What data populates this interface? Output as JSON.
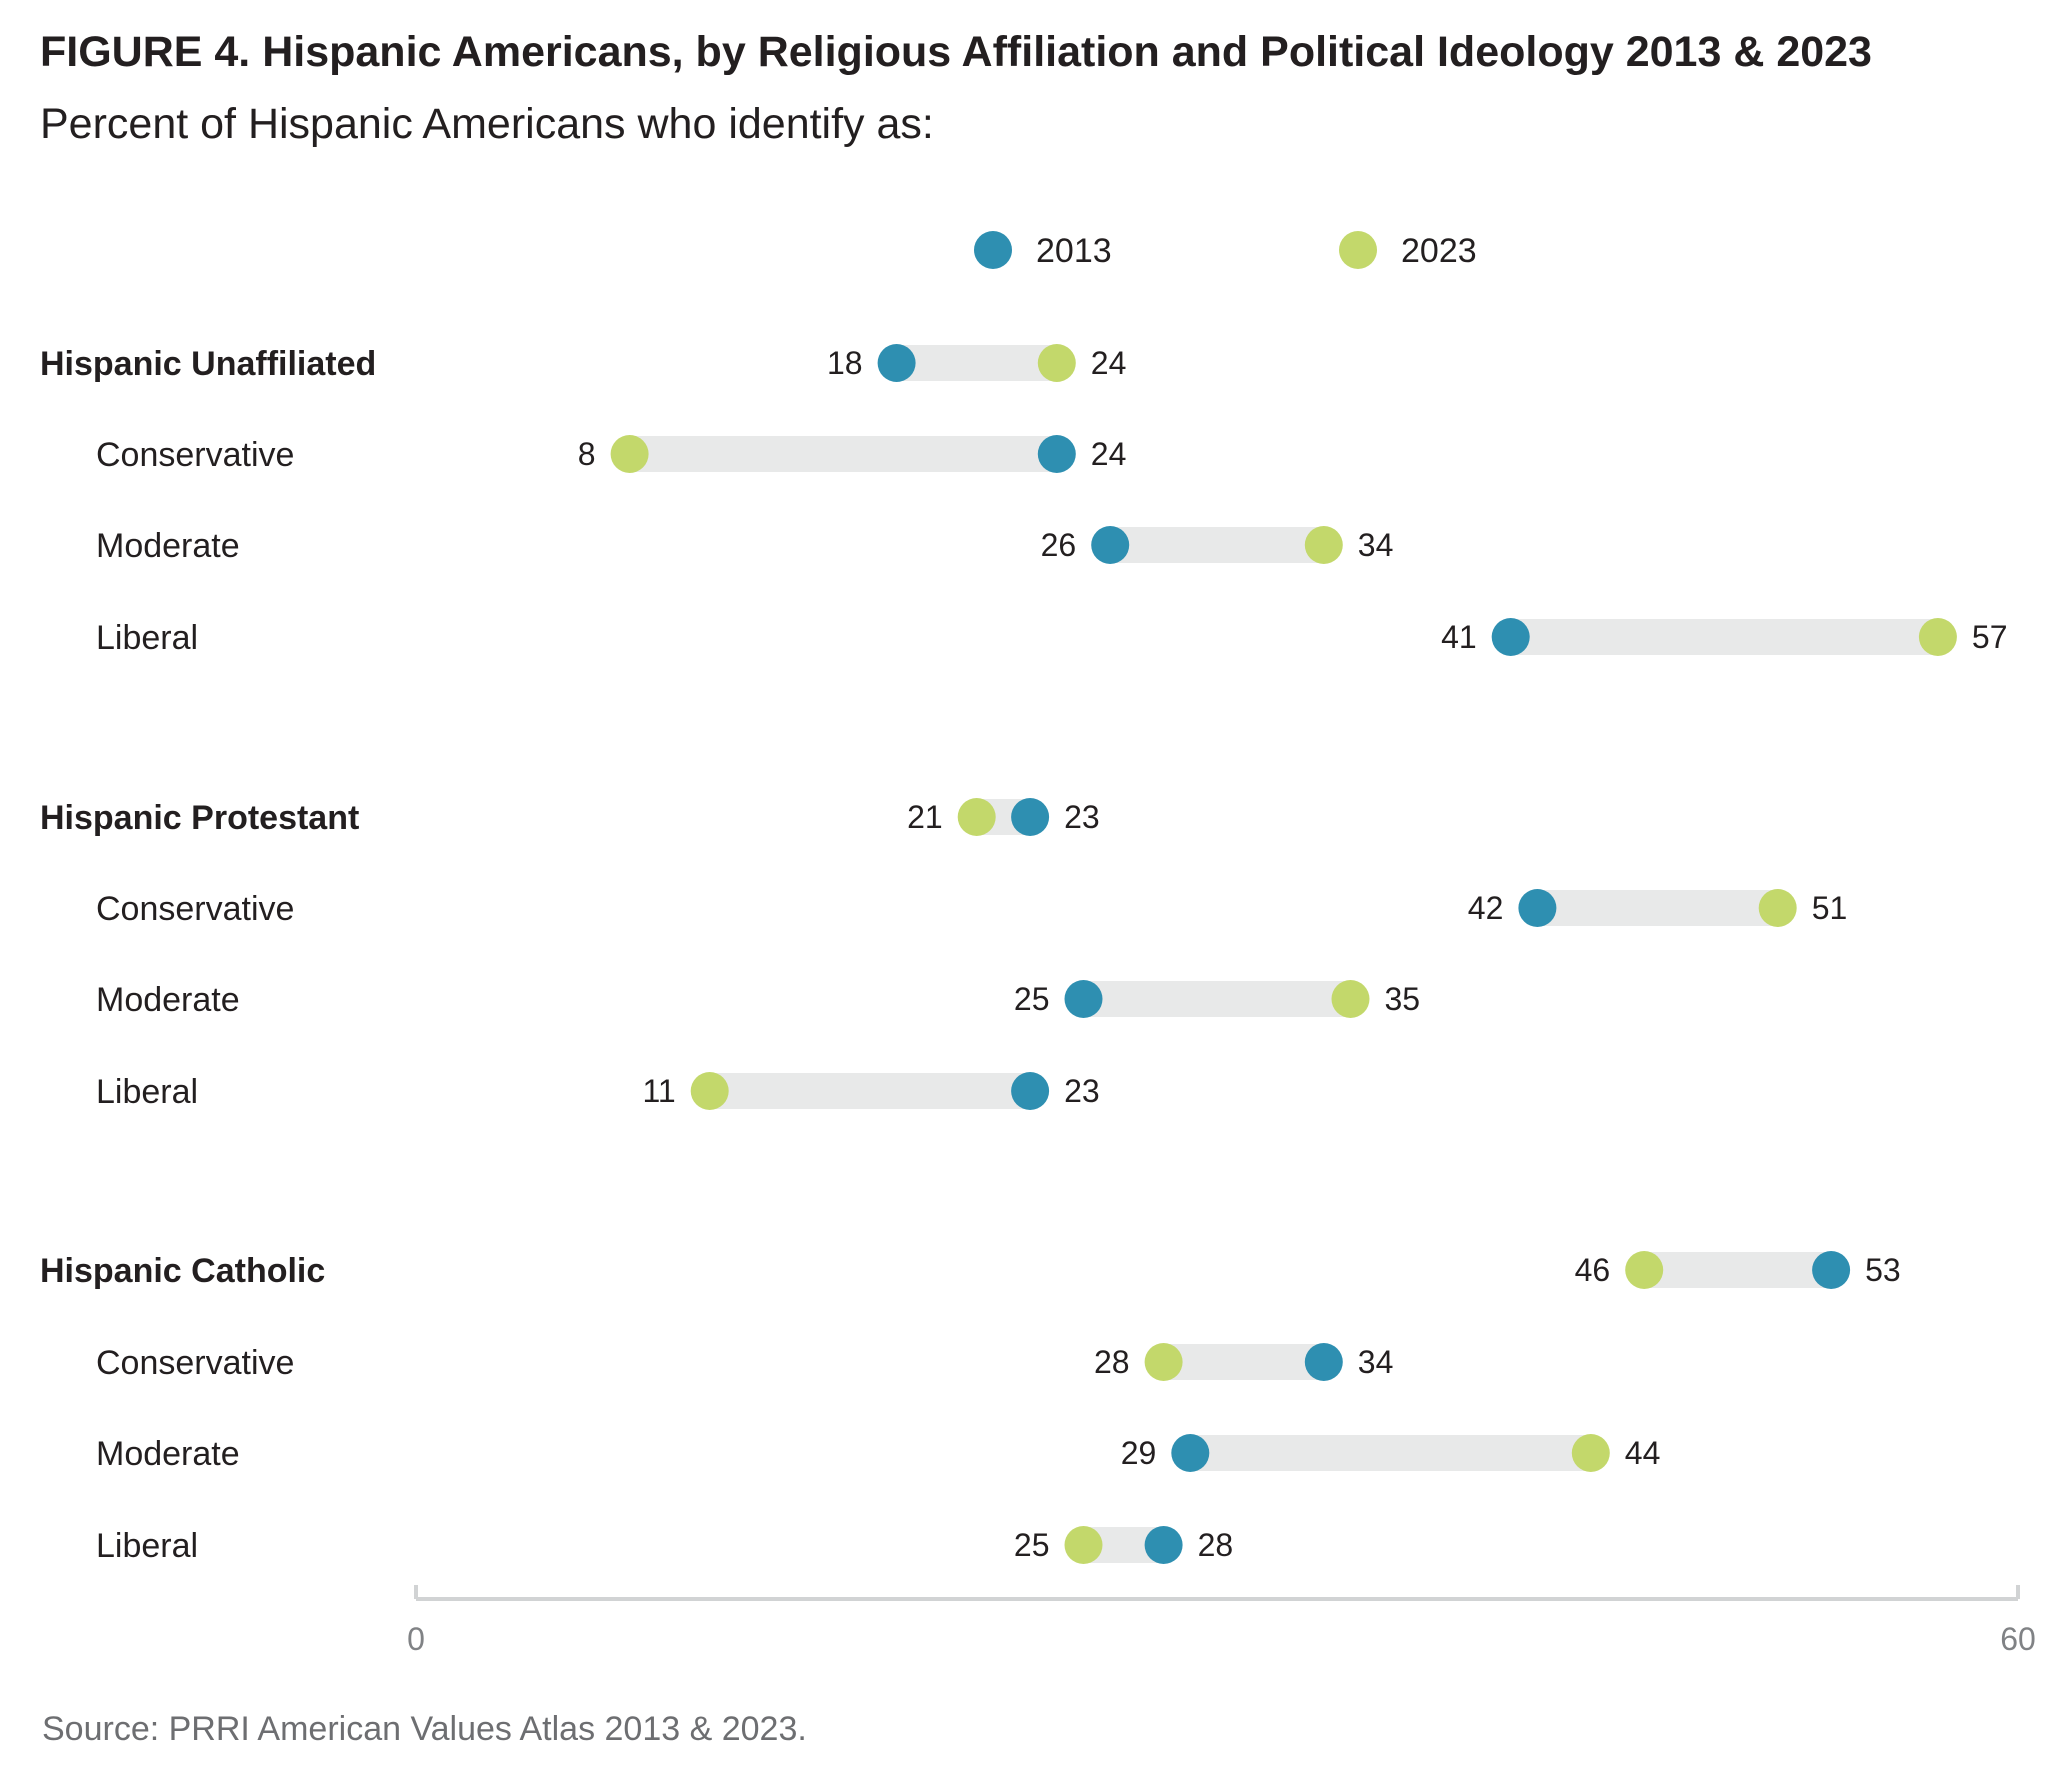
{
  "title": "FIGURE 4.  Hispanic Americans, by Religious Affiliation and Political Ideology 2013 & 2023",
  "subtitle": "Percent of Hispanic Americans who identify as:",
  "source": "Source: PRRI American Values Atlas 2013 & 2023.",
  "colors": {
    "y2013": "#2e8fb1",
    "y2023": "#c3d86b",
    "bar": "#e8e9e9",
    "axis": "#d1d3d4"
  },
  "chart_data": {
    "type": "dumbbell",
    "series": [
      {
        "name": "2013",
        "color": "#2e8fb1"
      },
      {
        "name": "2023",
        "color": "#c3d86b"
      }
    ],
    "legend_position": "top-center",
    "xlim": [
      0,
      60
    ],
    "ticks": [
      "0",
      "60"
    ],
    "rows": [
      {
        "label": "Hispanic Unaffiliated",
        "group": true,
        "v2013": 18,
        "v2023": 24
      },
      {
        "label": "Conservative",
        "group": false,
        "v2013": 24,
        "v2023": 8
      },
      {
        "label": "Moderate",
        "group": false,
        "v2013": 26,
        "v2023": 34
      },
      {
        "label": "Liberal",
        "group": false,
        "v2013": 41,
        "v2023": 57
      },
      {
        "label": "Hispanic Protestant",
        "group": true,
        "v2013": 23,
        "v2023": 21
      },
      {
        "label": "Conservative",
        "group": false,
        "v2013": 42,
        "v2023": 51
      },
      {
        "label": "Moderate",
        "group": false,
        "v2013": 25,
        "v2023": 35
      },
      {
        "label": "Liberal",
        "group": false,
        "v2013": 23,
        "v2023": 11
      },
      {
        "label": "Hispanic Catholic",
        "group": true,
        "v2013": 53,
        "v2023": 46
      },
      {
        "label": "Conservative",
        "group": false,
        "v2013": 34,
        "v2023": 28
      },
      {
        "label": "Moderate",
        "group": false,
        "v2013": 29,
        "v2023": 44
      },
      {
        "label": "Liberal",
        "group": false,
        "v2013": 28,
        "v2023": 25
      }
    ]
  }
}
